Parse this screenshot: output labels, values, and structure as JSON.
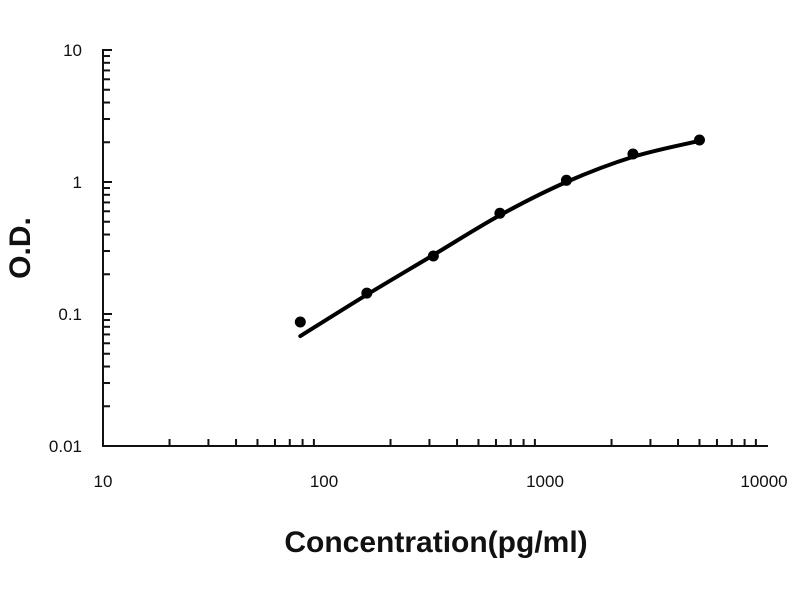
{
  "chart_data": {
    "type": "scatter",
    "title": "",
    "xlabel": "Concentration(pg/ml)",
    "ylabel": "O.D.",
    "x_scale": "log",
    "y_scale": "log",
    "xlim": [
      10,
      10000
    ],
    "ylim": [
      0.01,
      10
    ],
    "x_ticks": [
      "10",
      "100",
      "1000",
      "10000"
    ],
    "y_ticks": [
      "0.01",
      "0.1",
      "1",
      "10"
    ],
    "grid": false,
    "legend": "none",
    "series": [
      {
        "type": "scatter",
        "x": [
          78.125,
          156.25,
          312.5,
          625,
          1250,
          2500,
          5000
        ],
        "y": [
          0.087,
          0.144,
          0.275,
          0.58,
          1.03,
          1.63,
          2.08
        ]
      },
      {
        "type": "line",
        "x": [
          78.125,
          156.25,
          312.5,
          625,
          1250,
          2500,
          5000
        ],
        "y": [
          0.068,
          0.14,
          0.28,
          0.56,
          1.0,
          1.55,
          2.05
        ]
      }
    ],
    "colors": {
      "marks": "#000000"
    }
  }
}
